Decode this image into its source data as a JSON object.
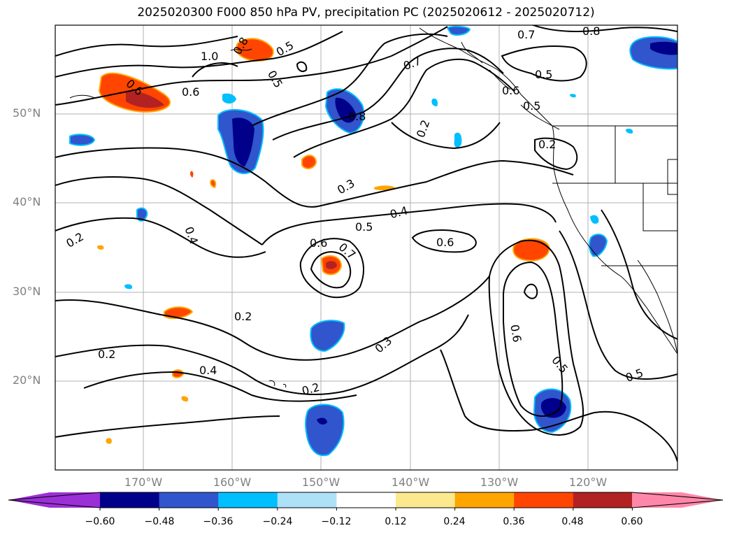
{
  "title": "2025020300 F000 850 hPa PV, precipitation PC (2025020612 - 2025020712)",
  "axes": {
    "lat_ticks": [
      "50°N",
      "40°N",
      "30°N",
      "20°N"
    ],
    "lon_ticks": [
      "170°W",
      "160°W",
      "150°W",
      "140°W",
      "130°W",
      "120°W"
    ]
  },
  "contour_labels": [
    "1.0",
    "0.8",
    "0.7",
    "0.8",
    "0.6",
    "0.6",
    "0.5",
    "0.5",
    "0.7",
    "0.8",
    "0.5",
    "0.6",
    "0.5",
    "0.2",
    "0.2",
    "0.3",
    "0.4",
    "0.5",
    "0.4",
    "0.2",
    "0.6",
    "0.7",
    "0.6",
    "0.2",
    "0.2",
    "0.4",
    "0.3",
    "0.6",
    "0.5",
    "0.5",
    "0.2"
  ],
  "colorbar": {
    "colors": [
      "#9b30d6",
      "#00008b",
      "#3055cc",
      "#00bfff",
      "#aee0f8",
      "#ffffff",
      "#fce98e",
      "#ffa500",
      "#ff4500",
      "#b22222",
      "#ff88aa"
    ],
    "labels": [
      "−0.60",
      "−0.48",
      "−0.36",
      "−0.24",
      "−0.12",
      "0.12",
      "0.24",
      "0.36",
      "0.48",
      "0.60"
    ]
  }
}
